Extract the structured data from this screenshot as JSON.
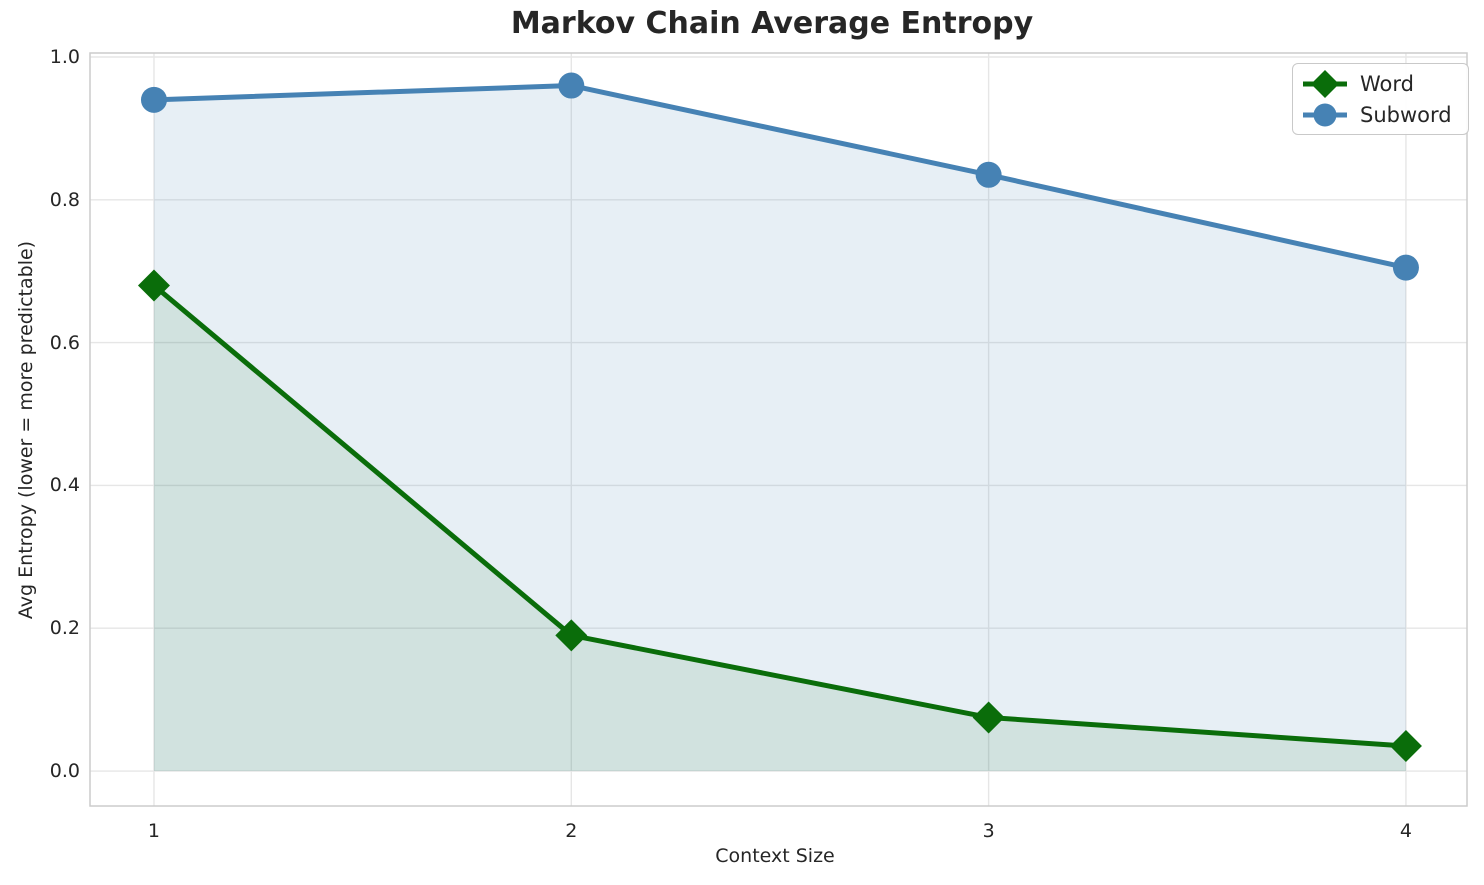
{
  "chart_data": {
    "type": "line",
    "title": "Markov Chain Average Entropy",
    "xlabel": "Context Size",
    "ylabel": "Avg Entropy (lower = more predictable)",
    "x": [
      1,
      2,
      3,
      4
    ],
    "series": [
      {
        "name": "Word",
        "values": [
          0.68,
          0.19,
          0.075,
          0.035
        ],
        "color": "#0a6d0a",
        "marker": "diamond",
        "fill_to_zero": true,
        "fill_opacity": 0.1,
        "line_width": 5
      },
      {
        "name": "Subword",
        "values": [
          0.94,
          0.96,
          0.835,
          0.705
        ],
        "color": "#4682b4",
        "marker": "circle",
        "fill_to_zero": true,
        "fill_opacity": 0.13,
        "line_width": 5
      }
    ],
    "xticks": {
      "values": [
        1,
        2,
        3,
        4
      ],
      "labels": [
        "1",
        "2",
        "3",
        "4"
      ]
    },
    "yticks": {
      "values": [
        0.0,
        0.2,
        0.4,
        0.6,
        0.8,
        1.0
      ],
      "labels": [
        "0.0",
        "0.2",
        "0.4",
        "0.6",
        "0.8",
        "1.0"
      ]
    },
    "xlim": [
      0.8467,
      4.1463
    ],
    "ylim": [
      -0.049,
      1.0056
    ],
    "grid": true,
    "legend": {
      "position": "upper right",
      "entries": [
        "Word",
        "Subword"
      ]
    },
    "colors": {
      "grid": "#e6e6e6",
      "spine": "#cccccc",
      "text": "#262626",
      "background": "#ffffff"
    }
  }
}
